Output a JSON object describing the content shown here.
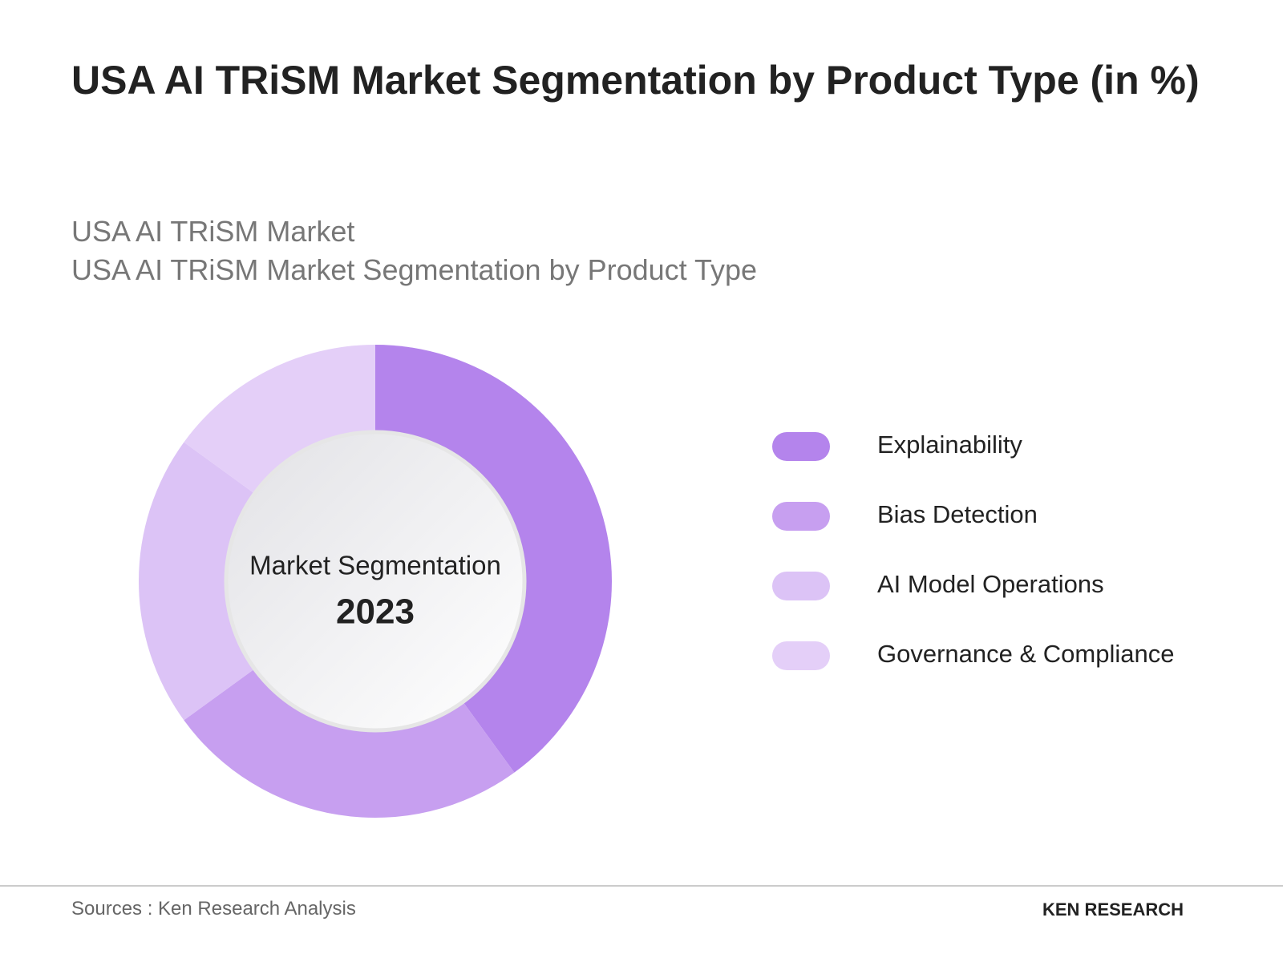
{
  "chart_data": {
    "type": "pie",
    "title": "USA AI TRiSM Market Segmentation by Product Type (in %)",
    "subtitles": [
      "USA AI TRiSM Market",
      "USA AI TRiSM Market Segmentation by Product Type"
    ],
    "center_label": "Market Segmentation",
    "center_year": "2023",
    "categories": [
      "Explainability",
      "Bias Detection",
      "AI Model Operations",
      "Governance & Compliance"
    ],
    "values": [
      40,
      25,
      20,
      15
    ],
    "colors": [
      "#b484ec",
      "#c79ff0",
      "#dcc3f6",
      "#e4cff8"
    ],
    "source": "Sources : Ken Research Analysis",
    "logo": "KEN RESEARCH"
  }
}
